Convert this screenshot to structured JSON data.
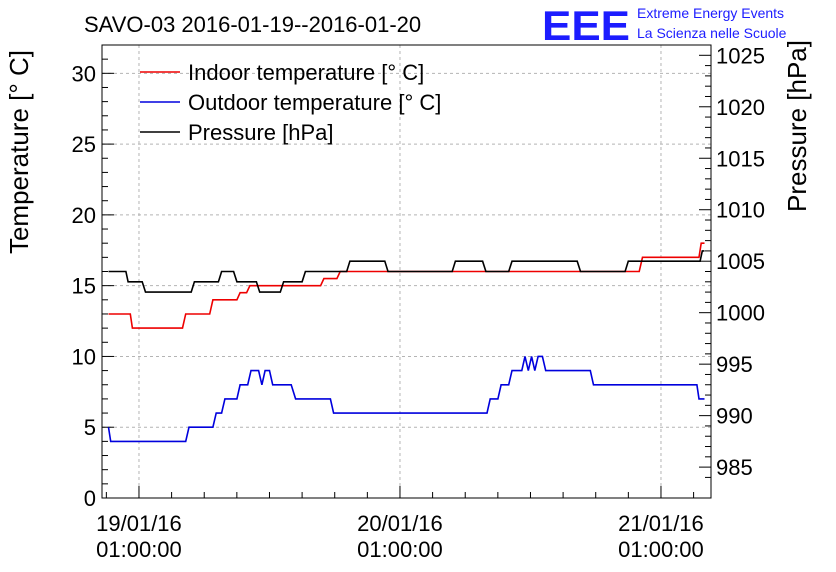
{
  "chart_data": {
    "type": "line",
    "title": "SAVO-03 2016-01-19--2016-01-20",
    "logo_text": "EEE",
    "logo_line1": "Extreme Energy Events",
    "logo_line2": "La Scienza nelle Scuole",
    "ylabel_left": "Temperature [° C]",
    "ylabel_right": "Pressure [hPa]",
    "left_axis": {
      "min": 0,
      "max": 32,
      "ticks": [
        0,
        5,
        10,
        15,
        20,
        25,
        30
      ]
    },
    "right_axis": {
      "min": 982,
      "max": 1026,
      "ticks": [
        985,
        990,
        995,
        1000,
        1005,
        1010,
        1015,
        1020,
        1025
      ]
    },
    "x_axis": {
      "min_hours": -3.4,
      "max_hours": 52.6,
      "ticks": [
        {
          "hours": 0,
          "date": "19/01/16",
          "time": "01:00:00"
        },
        {
          "hours": 24,
          "date": "20/01/16",
          "time": "01:00:00"
        },
        {
          "hours": 48,
          "date": "21/01/16",
          "time": "01:00:00"
        }
      ]
    },
    "colors": {
      "indoor": "#ee0000",
      "outdoor": "#0000dd",
      "pressure": "#000000",
      "logo": "#1c1cff"
    },
    "series": [
      {
        "name": "Indoor temperature [° C]",
        "axis": "left",
        "color": "#ee0000",
        "points": [
          [
            -2.8,
            13
          ],
          [
            -0.8,
            13
          ],
          [
            -0.6,
            12
          ],
          [
            4,
            12
          ],
          [
            4.3,
            13
          ],
          [
            6.5,
            13
          ],
          [
            6.8,
            14
          ],
          [
            9,
            14
          ],
          [
            9.3,
            14.5
          ],
          [
            9.9,
            14.5
          ],
          [
            10.2,
            15
          ],
          [
            16.7,
            15
          ],
          [
            17,
            15.5
          ],
          [
            18.2,
            15.5
          ],
          [
            18.5,
            16
          ],
          [
            46,
            16
          ],
          [
            46.3,
            17
          ],
          [
            51.5,
            17
          ],
          [
            51.7,
            18
          ],
          [
            52,
            18
          ]
        ]
      },
      {
        "name": "Outdoor temperature [° C]",
        "axis": "left",
        "color": "#0000dd",
        "points": [
          [
            -2.8,
            5
          ],
          [
            -2.6,
            4
          ],
          [
            4.3,
            4
          ],
          [
            4.6,
            5
          ],
          [
            6.8,
            5
          ],
          [
            7.1,
            6
          ],
          [
            7.6,
            6
          ],
          [
            7.9,
            7
          ],
          [
            9,
            7
          ],
          [
            9.3,
            8
          ],
          [
            10,
            8
          ],
          [
            10.3,
            9
          ],
          [
            11,
            9
          ],
          [
            11.3,
            8
          ],
          [
            11.6,
            9
          ],
          [
            12,
            9
          ],
          [
            12.3,
            8
          ],
          [
            14,
            8
          ],
          [
            14.4,
            7
          ],
          [
            17.6,
            7
          ],
          [
            17.9,
            6
          ],
          [
            32,
            6
          ],
          [
            32.3,
            7
          ],
          [
            33,
            7
          ],
          [
            33.3,
            8
          ],
          [
            34,
            8
          ],
          [
            34.3,
            9
          ],
          [
            35.2,
            9
          ],
          [
            35.5,
            10
          ],
          [
            35.8,
            9
          ],
          [
            36.1,
            10
          ],
          [
            36.4,
            9
          ],
          [
            36.7,
            10
          ],
          [
            37.1,
            10
          ],
          [
            37.4,
            9
          ],
          [
            41.5,
            9
          ],
          [
            41.8,
            8
          ],
          [
            51.3,
            8
          ],
          [
            51.5,
            7
          ],
          [
            52,
            7
          ]
        ]
      },
      {
        "name": "Pressure [hPa]",
        "axis": "right",
        "color": "#000000",
        "points": [
          [
            -2.8,
            1004
          ],
          [
            -1.2,
            1004
          ],
          [
            -1.0,
            1003
          ],
          [
            0.3,
            1003
          ],
          [
            0.6,
            1002
          ],
          [
            4.8,
            1002
          ],
          [
            5.1,
            1003
          ],
          [
            7.3,
            1003
          ],
          [
            7.6,
            1004
          ],
          [
            8.7,
            1004
          ],
          [
            9,
            1003
          ],
          [
            10.8,
            1003
          ],
          [
            11.1,
            1002
          ],
          [
            13,
            1002
          ],
          [
            13.3,
            1003
          ],
          [
            15,
            1003
          ],
          [
            15.3,
            1004
          ],
          [
            19.1,
            1004
          ],
          [
            19.4,
            1005
          ],
          [
            22.6,
            1005
          ],
          [
            22.9,
            1004
          ],
          [
            28.8,
            1004
          ],
          [
            29.1,
            1005
          ],
          [
            31.6,
            1005
          ],
          [
            31.9,
            1004
          ],
          [
            34,
            1004
          ],
          [
            34.3,
            1005
          ],
          [
            40.3,
            1005
          ],
          [
            40.6,
            1004
          ],
          [
            44.7,
            1004
          ],
          [
            45,
            1005
          ],
          [
            51.6,
            1005
          ],
          [
            51.8,
            1006
          ],
          [
            52,
            1006
          ]
        ]
      }
    ]
  }
}
